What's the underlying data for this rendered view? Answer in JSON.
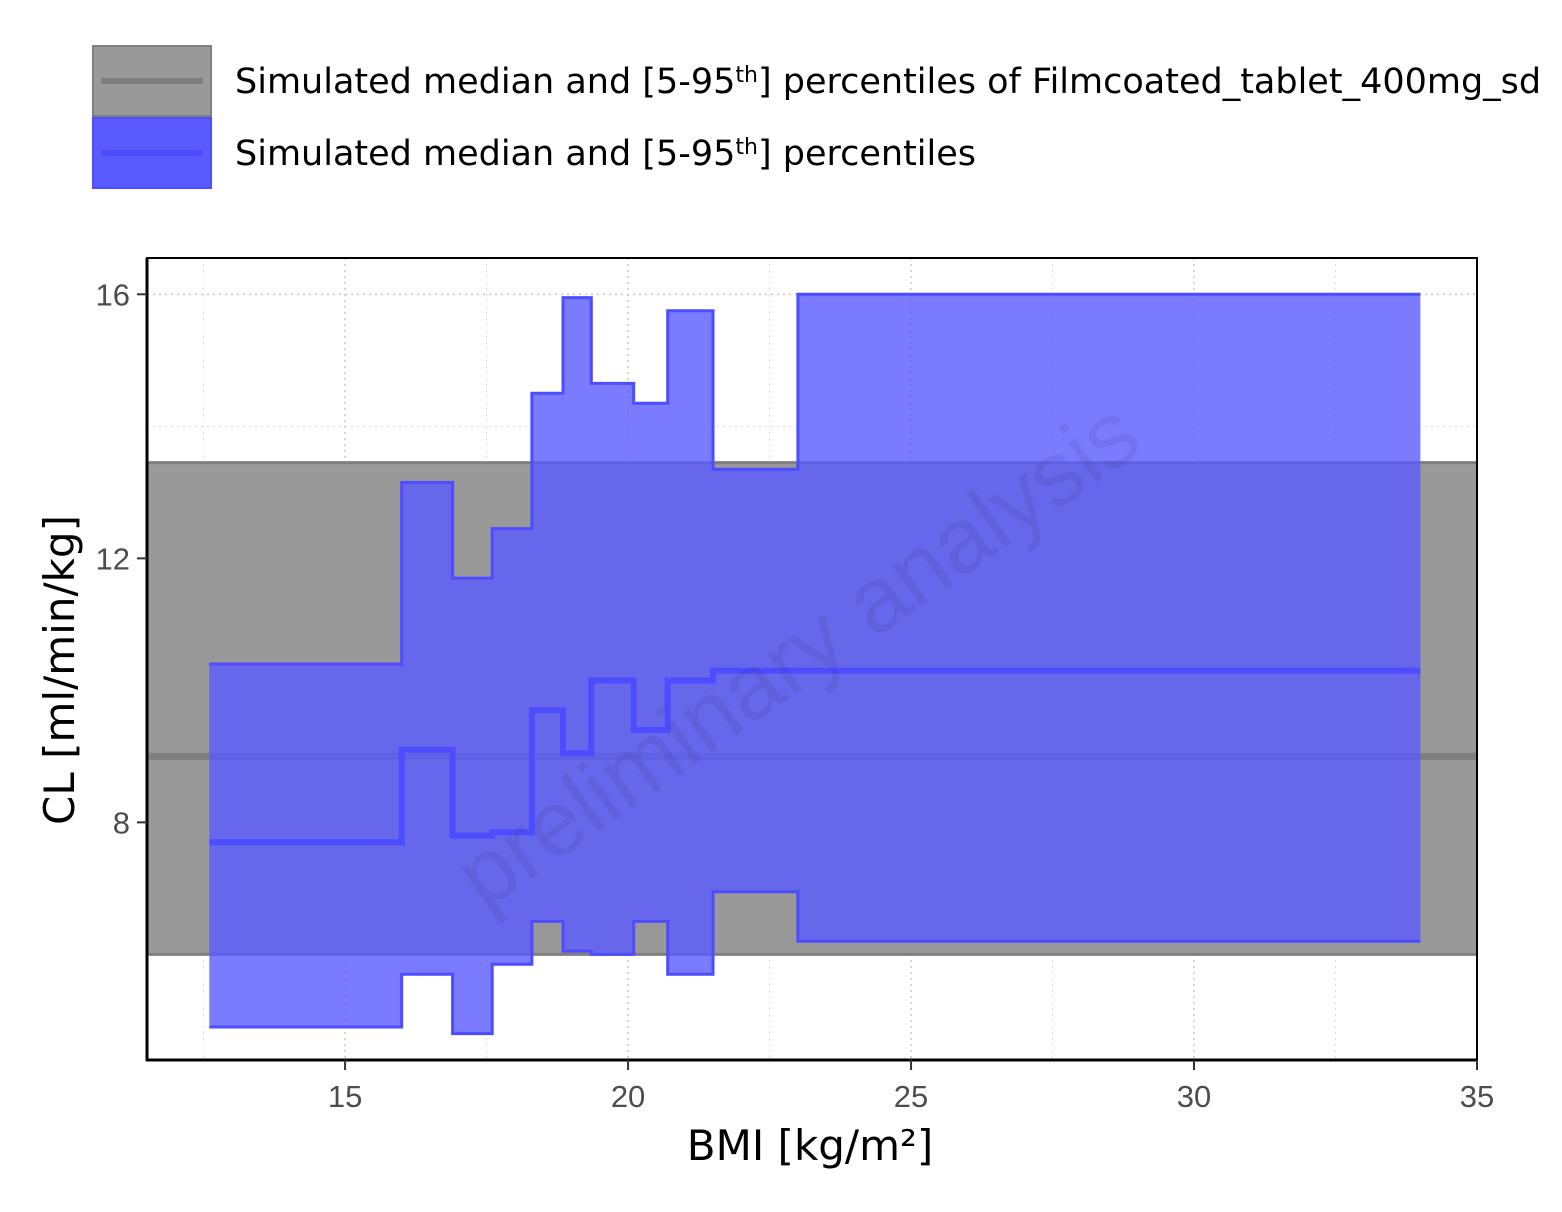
{
  "chart_data": {
    "type": "area",
    "xlabel": "BMI [kg/m²]",
    "ylabel": "CL [ml/min/kg]",
    "xlim": [
      11.5,
      35
    ],
    "ylim": [
      4.4,
      16.55
    ],
    "x_ticks": [
      15,
      20,
      25,
      30,
      35
    ],
    "y_ticks": [
      8,
      12,
      16
    ],
    "grid": true,
    "legend_position": "top",
    "watermark": "preliminary analysis",
    "colors": {
      "reference": "#7f7f7f",
      "reference_fill": "#999999",
      "simulated": "#4d4dff",
      "simulated_fill": "#5a5aff"
    },
    "legend": [
      {
        "key": "reference",
        "text_before": "Simulated median and [5-95",
        "sup": "th",
        "text_after": "] percentiles of Filmcoated_tablet_400mg_sd"
      },
      {
        "key": "simulated",
        "text_before": "Simulated median and [5-95",
        "sup": "th",
        "text_after": "] percentiles"
      }
    ],
    "reference_band": {
      "median": 9.0,
      "p5": 6.0,
      "p95": 13.45
    },
    "series": [
      {
        "name": "Simulated median and [5-95th] percentiles",
        "step_edges": [
          12.6,
          16.0,
          16.9,
          17.6,
          18.3,
          18.85,
          19.35,
          20.1,
          20.7,
          21.5,
          23.0,
          34.0
        ],
        "p95": [
          10.4,
          13.15,
          11.7,
          12.45,
          14.5,
          15.95,
          14.65,
          14.35,
          15.75,
          13.35,
          16.0
        ],
        "median": [
          7.7,
          9.1,
          7.8,
          7.85,
          9.7,
          9.05,
          10.15,
          9.4,
          10.15,
          10.3,
          10.3
        ],
        "p5": [
          4.9,
          5.7,
          4.8,
          5.85,
          6.5,
          6.05,
          6.0,
          6.5,
          5.7,
          6.95,
          6.2
        ]
      }
    ]
  }
}
